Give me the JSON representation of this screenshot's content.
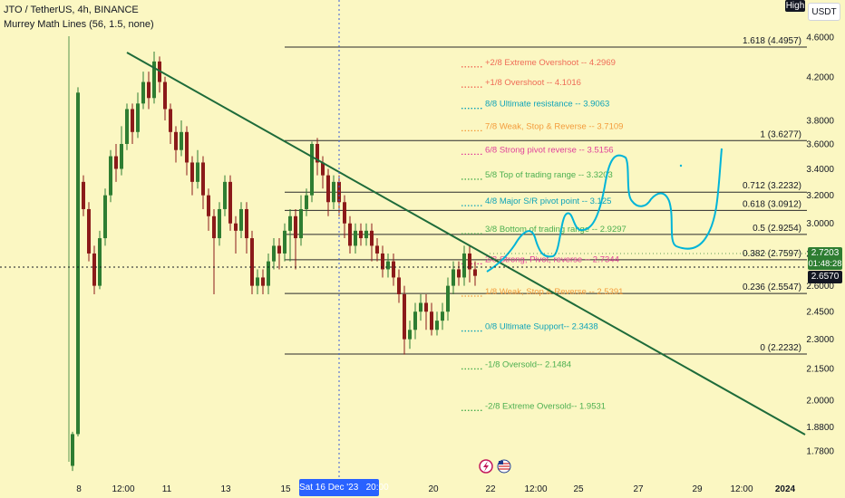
{
  "header": {
    "title": "JTO / TetherUS, 4h, BINANCE",
    "indicator": "Murrey Math Lines (56, 1.5, none)"
  },
  "price_scale": {
    "high_button": "High",
    "currency_button": "USDT",
    "current_price": "2.7203",
    "countdown": "01:48:28",
    "crosshair_price": "2.6570"
  },
  "time_axis": {
    "crosshair_label": "Sat 16 Dec '23   20:00"
  },
  "colors": {
    "background": "#fbf7c2",
    "up": "#2e7d32",
    "down": "#8b1a1a",
    "trendline": "#1e6b3a",
    "drawing": "#00b4d8"
  },
  "chart_data": {
    "type": "candlestick",
    "symbol": "JTO / TetherUS",
    "interval": "4h",
    "exchange": "BINANCE",
    "y_scale": "log",
    "ylim": [
      1.72,
      4.75
    ],
    "y_ticks": [
      "4.6000",
      "4.2000",
      "3.8000",
      "3.6000",
      "3.4000",
      "3.2000",
      "3.0000",
      "2.8000",
      "2.6000",
      "2.4500",
      "2.3000",
      "2.1500",
      "2.0000",
      "1.8800",
      "1.7800"
    ],
    "x_ticks": [
      "8",
      "12:00",
      "11",
      "13",
      "15",
      "20",
      "22",
      "12:00",
      "25",
      "27",
      "29",
      "12:00",
      "2024"
    ],
    "fib_levels": [
      {
        "label": "1.618 (4.4957)",
        "value": 4.4957
      },
      {
        "label": "1 (3.6277)",
        "value": 3.6277
      },
      {
        "label": "0.712 (3.2232)",
        "value": 3.2232
      },
      {
        "label": "0.618 (3.0912)",
        "value": 3.0912
      },
      {
        "label": "0.5 (2.9254)",
        "value": 2.9254
      },
      {
        "label": "0.382 (2.7597)",
        "value": 2.7597
      },
      {
        "label": "0.236 (2.5547)",
        "value": 2.5547
      },
      {
        "label": "0 (2.2232)",
        "value": 2.2232
      }
    ],
    "murrey_lines": [
      {
        "label": "+2/8 Extreme Overshoot --  4.2969",
        "value": 4.2969,
        "color": "#ef6c57"
      },
      {
        "label": "+1/8 Overshoot --  4.1016",
        "value": 4.1016,
        "color": "#ef6c57"
      },
      {
        "label": "8/8 Ultimate resistance --  3.9063",
        "value": 3.9063,
        "color": "#0fa3b8"
      },
      {
        "label": "7/8 Weak, Stop & Reverse --  3.7109",
        "value": 3.7109,
        "color": "#f39c3c"
      },
      {
        "label": "6/8 Strong pivot reverse --  3.5156",
        "value": 3.5156,
        "color": "#e0409a"
      },
      {
        "label": "5/8 Top of trading range --  3.3203",
        "value": 3.3203,
        "color": "#4caf50"
      },
      {
        "label": "4/8 Major S/R pivot point --  3.125",
        "value": 3.125,
        "color": "#0fa3b8"
      },
      {
        "label": "3/8 Bottom of trading range --  2.9297",
        "value": 2.9297,
        "color": "#4caf50"
      },
      {
        "label": "2/8 Strong, Pivot, reverse --  2.7344",
        "value": 2.7344,
        "color": "#e0409a"
      },
      {
        "label": "1/8 Weak, Stop & Reverse --  2.5391",
        "value": 2.5391,
        "color": "#f39c3c"
      },
      {
        "label": "0/8 Ultimate Support--  2.3438",
        "value": 2.3438,
        "color": "#0fa3b8"
      },
      {
        "label": "-1/8 Oversold--  2.1484",
        "value": 2.1484,
        "color": "#4caf50"
      },
      {
        "label": "-2/8 Extreme Oversold--  1.9531",
        "value": 1.9531,
        "color": "#4caf50"
      }
    ],
    "candles": [
      [
        1.72,
        1.85,
        1.7,
        1.86
      ],
      [
        1.85,
        4.05,
        1.84,
        4.1
      ],
      [
        3.3,
        3.1,
        3.05,
        3.35
      ],
      [
        3.1,
        2.8,
        2.75,
        3.15
      ],
      [
        2.8,
        2.6,
        2.55,
        2.85
      ],
      [
        2.6,
        2.9,
        2.58,
        2.95
      ],
      [
        2.9,
        3.2,
        2.85,
        3.25
      ],
      [
        3.2,
        3.5,
        3.15,
        3.55
      ],
      [
        3.5,
        3.4,
        3.3,
        3.6
      ],
      [
        3.4,
        3.6,
        3.35,
        3.75
      ],
      [
        3.6,
        3.9,
        3.55,
        3.95
      ],
      [
        3.9,
        3.7,
        3.6,
        3.95
      ],
      [
        3.7,
        3.95,
        3.65,
        4.05
      ],
      [
        3.95,
        4.15,
        3.9,
        4.25
      ],
      [
        4.15,
        4.0,
        3.9,
        4.25
      ],
      [
        4.0,
        4.35,
        3.95,
        4.45
      ],
      [
        4.35,
        4.15,
        4.05,
        4.4
      ],
      [
        4.15,
        3.9,
        3.8,
        4.2
      ],
      [
        3.9,
        3.7,
        3.6,
        3.95
      ],
      [
        3.7,
        3.55,
        3.45,
        3.75
      ],
      [
        3.55,
        3.7,
        3.5,
        3.8
      ],
      [
        3.7,
        3.45,
        3.35,
        3.75
      ],
      [
        3.45,
        3.3,
        3.2,
        3.5
      ],
      [
        3.3,
        3.45,
        3.25,
        3.55
      ],
      [
        3.45,
        3.2,
        3.1,
        3.5
      ],
      [
        3.2,
        3.05,
        2.95,
        3.25
      ],
      [
        3.05,
        2.9,
        2.55,
        3.1
      ],
      [
        2.9,
        3.1,
        2.85,
        3.15
      ],
      [
        3.1,
        3.3,
        3.05,
        3.35
      ],
      [
        3.3,
        3.0,
        2.95,
        3.35
      ],
      [
        3.0,
        2.95,
        2.8,
        3.05
      ],
      [
        2.95,
        3.1,
        2.9,
        3.15
      ],
      [
        3.1,
        2.9,
        2.8,
        3.15
      ],
      [
        2.9,
        2.6,
        2.55,
        2.95
      ],
      [
        2.6,
        2.65,
        2.55,
        2.7
      ],
      [
        2.65,
        2.6,
        2.55,
        2.7
      ],
      [
        2.6,
        2.75,
        2.55,
        2.8
      ],
      [
        2.75,
        2.85,
        2.7,
        2.9
      ],
      [
        2.85,
        2.8,
        2.7,
        2.9
      ],
      [
        2.8,
        2.95,
        2.75,
        3.0
      ],
      [
        2.95,
        3.05,
        2.75,
        3.1
      ],
      [
        3.05,
        2.9,
        2.7,
        3.1
      ],
      [
        2.9,
        3.1,
        2.85,
        3.2
      ],
      [
        3.1,
        3.2,
        3.05,
        3.25
      ],
      [
        3.2,
        3.6,
        3.15,
        3.62
      ],
      [
        3.6,
        3.45,
        3.35,
        3.65
      ],
      [
        3.45,
        3.35,
        3.25,
        3.5
      ],
      [
        3.35,
        3.15,
        3.05,
        3.4
      ],
      [
        3.15,
        3.3,
        3.1,
        3.35
      ],
      [
        3.3,
        3.15,
        3.05,
        3.35
      ],
      [
        3.15,
        3.0,
        2.9,
        3.2
      ],
      [
        3.0,
        2.85,
        2.8,
        3.05
      ],
      [
        2.85,
        2.95,
        2.8,
        3.0
      ],
      [
        2.95,
        2.9,
        2.85,
        3.0
      ],
      [
        2.9,
        2.95,
        2.85,
        3.0
      ],
      [
        2.95,
        2.85,
        2.75,
        3.0
      ],
      [
        2.85,
        2.8,
        2.75,
        2.9
      ],
      [
        2.8,
        2.7,
        2.65,
        2.85
      ],
      [
        2.7,
        2.75,
        2.65,
        2.8
      ],
      [
        2.75,
        2.65,
        2.6,
        2.8
      ],
      [
        2.65,
        2.55,
        2.5,
        2.7
      ],
      [
        2.55,
        2.3,
        2.22,
        2.6
      ],
      [
        2.3,
        2.35,
        2.25,
        2.4
      ],
      [
        2.35,
        2.45,
        2.3,
        2.5
      ],
      [
        2.45,
        2.5,
        2.4,
        2.55
      ],
      [
        2.5,
        2.45,
        2.35,
        2.55
      ],
      [
        2.45,
        2.35,
        2.32,
        2.5
      ],
      [
        2.35,
        2.4,
        2.32,
        2.45
      ],
      [
        2.4,
        2.45,
        2.35,
        2.5
      ],
      [
        2.45,
        2.6,
        2.4,
        2.65
      ],
      [
        2.6,
        2.7,
        2.55,
        2.75
      ],
      [
        2.7,
        2.65,
        2.6,
        2.75
      ],
      [
        2.65,
        2.8,
        2.6,
        2.85
      ],
      [
        2.8,
        2.7,
        2.62,
        2.85
      ],
      [
        2.7,
        2.66,
        2.6,
        2.75
      ]
    ]
  }
}
